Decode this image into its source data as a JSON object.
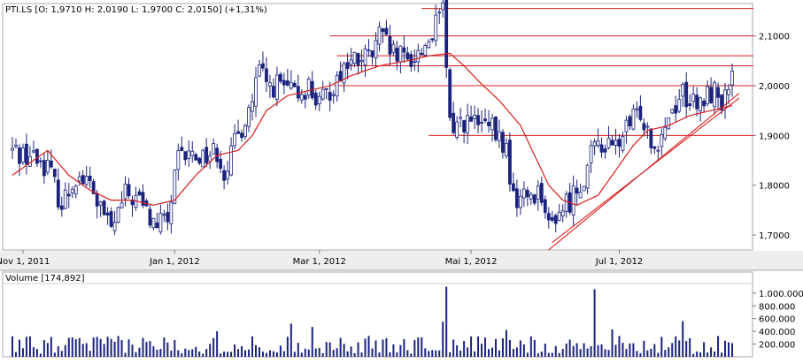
{
  "chart_data": [
    {
      "type": "candlestick",
      "title": "PTI.LS [O: 1,9710  H: 2,0190  L: 1,9700  C: 2,0150] (+1,31%)",
      "ylim": [
        1.67,
        2.165
      ],
      "yticks": [
        1.7,
        1.8,
        1.9,
        2.0,
        2.1
      ],
      "ytick_labels": [
        "1,7000",
        "1,8000",
        "1,9000",
        "2,0000",
        "2,1000"
      ],
      "xtick_labels": [
        "Nov 1, 2011",
        "Jan 1, 2012",
        "Mar 1, 2012",
        "Mai 1, 2012",
        "Jul 1, 2012"
      ],
      "xtick_index": [
        3,
        46,
        87,
        130,
        172
      ],
      "n_sessions": 205,
      "price_path": [
        [
          0,
          1.87
        ],
        [
          5,
          1.86
        ],
        [
          10,
          1.84
        ],
        [
          14,
          1.76
        ],
        [
          18,
          1.82
        ],
        [
          22,
          1.8
        ],
        [
          25,
          1.75
        ],
        [
          28,
          1.71
        ],
        [
          32,
          1.78
        ],
        [
          36,
          1.77
        ],
        [
          40,
          1.72
        ],
        [
          44,
          1.73
        ],
        [
          47,
          1.85
        ],
        [
          50,
          1.86
        ],
        [
          54,
          1.86
        ],
        [
          58,
          1.87
        ],
        [
          60,
          1.83
        ],
        [
          62,
          1.86
        ],
        [
          64,
          1.9
        ],
        [
          68,
          1.97
        ],
        [
          70,
          2.03
        ],
        [
          72,
          2.0
        ],
        [
          76,
          2.0
        ],
        [
          80,
          1.98
        ],
        [
          84,
          2.0
        ],
        [
          87,
          1.96
        ],
        [
          90,
          1.99
        ],
        [
          94,
          2.04
        ],
        [
          98,
          2.05
        ],
        [
          102,
          2.06
        ],
        [
          104,
          2.1
        ],
        [
          108,
          2.06
        ],
        [
          112,
          2.05
        ],
        [
          116,
          2.07
        ],
        [
          120,
          2.12
        ],
        [
          122,
          2.15
        ],
        [
          124,
          1.92
        ],
        [
          128,
          1.93
        ],
        [
          132,
          1.92
        ],
        [
          136,
          1.91
        ],
        [
          140,
          1.87
        ],
        [
          142,
          1.77
        ],
        [
          146,
          1.78
        ],
        [
          150,
          1.79
        ],
        [
          152,
          1.71
        ],
        [
          154,
          1.74
        ],
        [
          158,
          1.77
        ],
        [
          162,
          1.82
        ],
        [
          166,
          1.89
        ],
        [
          170,
          1.87
        ],
        [
          174,
          1.91
        ],
        [
          178,
          1.95
        ],
        [
          182,
          1.88
        ],
        [
          186,
          1.94
        ],
        [
          190,
          1.99
        ],
        [
          194,
          1.95
        ],
        [
          198,
          1.99
        ],
        [
          202,
          1.97
        ],
        [
          204,
          2.015
        ]
      ],
      "moving_average_path": [
        [
          0,
          1.82
        ],
        [
          10,
          1.87
        ],
        [
          16,
          1.82
        ],
        [
          22,
          1.79
        ],
        [
          28,
          1.77
        ],
        [
          34,
          1.77
        ],
        [
          40,
          1.76
        ],
        [
          46,
          1.77
        ],
        [
          52,
          1.82
        ],
        [
          58,
          1.86
        ],
        [
          64,
          1.87
        ],
        [
          68,
          1.9
        ],
        [
          72,
          1.95
        ],
        [
          78,
          1.98
        ],
        [
          84,
          1.99
        ],
        [
          90,
          2.0
        ],
        [
          96,
          2.02
        ],
        [
          104,
          2.04
        ],
        [
          112,
          2.05
        ],
        [
          118,
          2.06
        ],
        [
          124,
          2.065
        ],
        [
          128,
          2.04
        ],
        [
          132,
          2.01
        ],
        [
          138,
          1.97
        ],
        [
          144,
          1.92
        ],
        [
          148,
          1.86
        ],
        [
          152,
          1.8
        ],
        [
          156,
          1.77
        ],
        [
          160,
          1.76
        ],
        [
          166,
          1.78
        ],
        [
          172,
          1.84
        ],
        [
          176,
          1.88
        ],
        [
          180,
          1.91
        ],
        [
          186,
          1.92
        ],
        [
          192,
          1.94
        ],
        [
          198,
          1.95
        ],
        [
          204,
          1.96
        ]
      ],
      "horizontal_lines": [
        {
          "y": 2.155,
          "from": 116,
          "to": 210
        },
        {
          "y": 2.1,
          "from": 90,
          "to": 210
        },
        {
          "y": 2.06,
          "from": 92,
          "to": 210
        },
        {
          "y": 2.04,
          "from": 93,
          "to": 210
        },
        {
          "y": 2.0,
          "from": 91,
          "to": 210
        },
        {
          "y": 1.9,
          "from": 118,
          "to": 210
        }
      ],
      "trend_lines": [
        {
          "x1": 152,
          "y1": 1.67,
          "x2": 206,
          "y2": 1.985
        },
        {
          "x1": 153,
          "y1": 1.685,
          "x2": 206,
          "y2": 1.975
        }
      ],
      "colors": {
        "bar": "#1a237e",
        "line": "#d91e1e",
        "axis": "#999999",
        "grid_bg": "#ffffff"
      }
    },
    {
      "type": "bar",
      "title": "Volume [174,892]",
      "ylim": [
        0,
        1150000
      ],
      "yticks": [
        200000,
        400000,
        600000,
        800000,
        1000000
      ],
      "ytick_labels": [
        "200.000",
        "400.000",
        "600.000",
        "800.000",
        "1.000.000"
      ],
      "spikes": [
        {
          "i": 123,
          "v": 1100000
        },
        {
          "i": 122,
          "v": 550000
        },
        {
          "i": 165,
          "v": 1060000
        },
        {
          "i": 79,
          "v": 520000
        },
        {
          "i": 85,
          "v": 470000
        },
        {
          "i": 190,
          "v": 560000
        },
        {
          "i": 170,
          "v": 430000
        },
        {
          "i": 58,
          "v": 400000
        },
        {
          "i": 140,
          "v": 420000
        }
      ],
      "baseline_volume": 220000,
      "colors": {
        "bar": "#1a237e"
      }
    }
  ]
}
